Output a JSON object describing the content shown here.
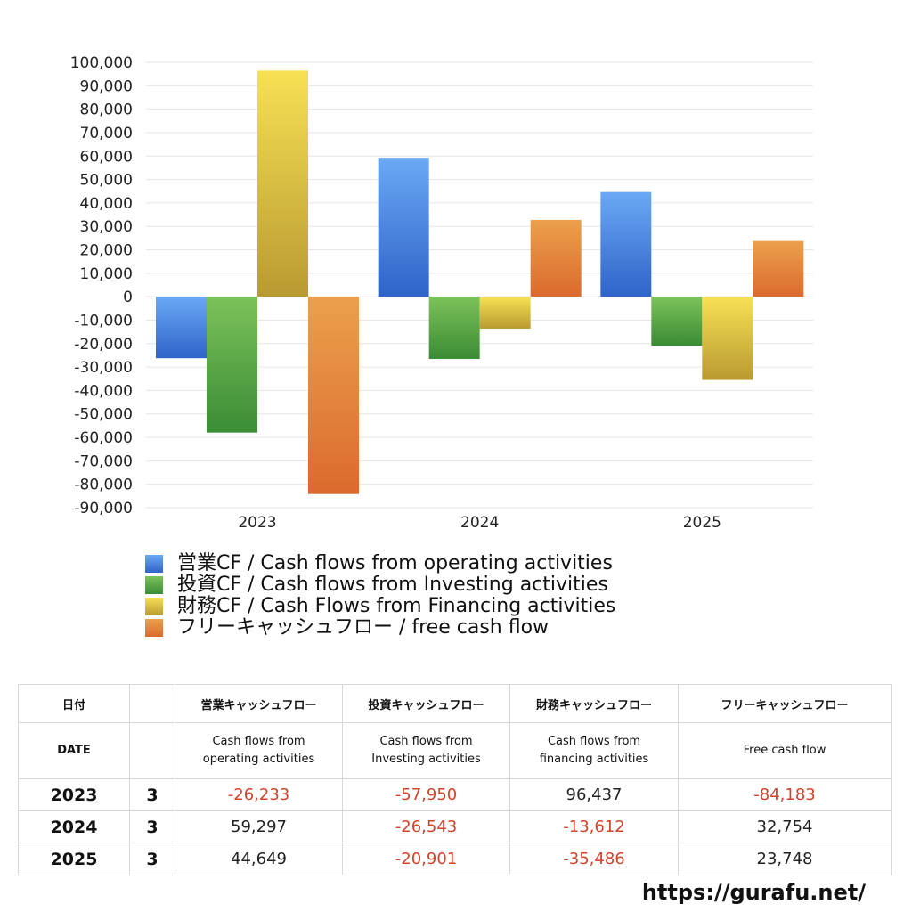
{
  "chart_data": {
    "type": "bar",
    "categories": [
      "2023",
      "2024",
      "2025"
    ],
    "series": [
      {
        "name": "営業CF / Cash flows from operating activities",
        "values": [
          -26233,
          59297,
          44649
        ],
        "color_top": "#6aa9f4",
        "color_bottom": "#2f63c9"
      },
      {
        "name": "投資CF / Cash flows from Investing activities",
        "values": [
          -57950,
          -26543,
          -20901
        ],
        "color_top": "#7cc25a",
        "color_bottom": "#3a8c35"
      },
      {
        "name": "財務CF / Cash Flows from Financing activities",
        "values": [
          96437,
          -13612,
          -35486
        ],
        "color_top": "#f6e154",
        "color_bottom": "#b99a32"
      },
      {
        "name": "フリーキャッシュフロー / free cash flow",
        "values": [
          -84183,
          32754,
          23748
        ],
        "color_top": "#eba04c",
        "color_bottom": "#db6a2e"
      }
    ],
    "ylim": [
      -90000,
      100000
    ],
    "ytick_step": 10000,
    "ytick_labels": [
      "100,000",
      "90,000",
      "80,000",
      "70,000",
      "60,000",
      "50,000",
      "40,000",
      "30,000",
      "20,000",
      "10,000",
      "0",
      "-10,000",
      "-20,000",
      "-30,000",
      "-40,000",
      "-50,000",
      "-60,000",
      "-70,000",
      "-80,000",
      "-90,000"
    ],
    "grid": true,
    "legend_position": "bottom-left"
  },
  "table": {
    "header_jp": [
      "日付",
      "",
      "営業キャッシュフロー",
      "投資キャッシュフロー",
      "財務キャッシュフロー",
      "フリーキャッシュフロー"
    ],
    "header_en": [
      [
        "DATE"
      ],
      [
        ""
      ],
      [
        "Cash flows from",
        "operating activities"
      ],
      [
        "Cash flows from",
        "Investing activities"
      ],
      [
        "Cash flows from",
        "financing activities"
      ],
      [
        "Free cash flow"
      ]
    ],
    "rows": [
      {
        "year": "2023",
        "month": "3",
        "cells": [
          {
            "text": "-26,233",
            "negative": true
          },
          {
            "text": "-57,950",
            "negative": true
          },
          {
            "text": "96,437",
            "negative": false
          },
          {
            "text": "-84,183",
            "negative": true
          }
        ]
      },
      {
        "year": "2024",
        "month": "3",
        "cells": [
          {
            "text": "59,297",
            "negative": false
          },
          {
            "text": "-26,543",
            "negative": true
          },
          {
            "text": "-13,612",
            "negative": true
          },
          {
            "text": "32,754",
            "negative": false
          }
        ]
      },
      {
        "year": "2025",
        "month": "3",
        "cells": [
          {
            "text": "44,649",
            "negative": false
          },
          {
            "text": "-20,901",
            "negative": true
          },
          {
            "text": "-35,486",
            "negative": true
          },
          {
            "text": "23,748",
            "negative": false
          }
        ]
      }
    ],
    "negative_color": "#d2432b"
  },
  "footer": {
    "url": "https://gurafu.net/"
  }
}
